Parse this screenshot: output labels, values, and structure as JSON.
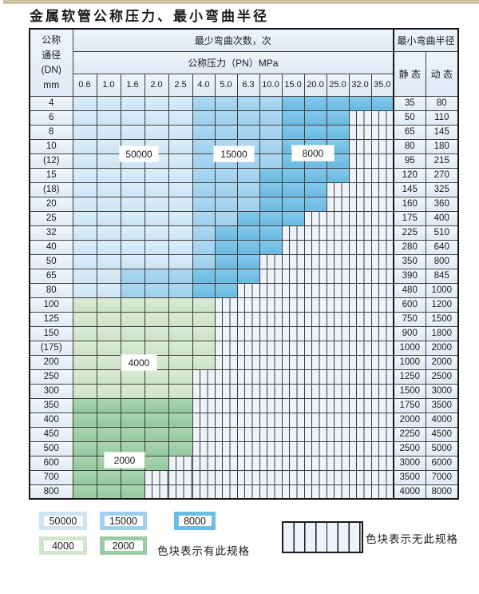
{
  "title": "金属软管公称压力、最小弯曲半径",
  "table": {
    "header": {
      "dn_lines": [
        "公称",
        "通径",
        "(DN)",
        "mm"
      ],
      "bend_cycles": "最少弯曲次数，次",
      "pressure": "公称压力（PN）MPa",
      "radius": "最小弯曲半径",
      "static": "静 态",
      "dynamic": "动 态",
      "pressure_cols": [
        "0.6",
        "1.0",
        "1.6",
        "2.0",
        "2.5",
        "4.0",
        "5.0",
        "6.3",
        "10.0",
        "15.0",
        "20.0",
        "25.0",
        "32.0",
        "35.0"
      ]
    },
    "cycle_codes": {
      "L5": "50000",
      "L15": "15000",
      "L8": "8000",
      "G4": "4000",
      "G2": "2000",
      "N": "no-spec"
    },
    "rows": [
      {
        "dn": "4",
        "static": "35",
        "dynamic": "80",
        "cells": [
          "L5",
          "L5",
          "L5",
          "L5",
          "L5",
          "L15",
          "L15",
          "L15",
          "L15",
          "L8",
          "L8",
          "L8",
          "L8",
          "L8"
        ]
      },
      {
        "dn": "6",
        "static": "50",
        "dynamic": "110",
        "cells": [
          "L5",
          "L5",
          "L5",
          "L5",
          "L5",
          "L15",
          "L15",
          "L15",
          "L15",
          "L8",
          "L8",
          "L8",
          "N",
          "N"
        ]
      },
      {
        "dn": "8",
        "static": "65",
        "dynamic": "145",
        "cells": [
          "L5",
          "L5",
          "L5",
          "L5",
          "L5",
          "L15",
          "L15",
          "L15",
          "L15",
          "L8",
          "L8",
          "L8",
          "N",
          "N"
        ]
      },
      {
        "dn": "10",
        "static": "80",
        "dynamic": "180",
        "cells": [
          "L5",
          "L5",
          "L5",
          "L5",
          "L5",
          "L15",
          "L15",
          "L15",
          "L15",
          "L8",
          "L8",
          "L8",
          "N",
          "N"
        ]
      },
      {
        "dn": "(12)",
        "static": "95",
        "dynamic": "215",
        "cells": [
          "L5",
          "L5",
          "L5",
          "L5",
          "L5",
          "L15",
          "L15",
          "L15",
          "L15",
          "L8",
          "L8",
          "L8",
          "N",
          "N"
        ]
      },
      {
        "dn": "15",
        "static": "120",
        "dynamic": "270",
        "cells": [
          "L5",
          "L5",
          "L5",
          "L5",
          "L5",
          "L15",
          "L15",
          "L15",
          "L8",
          "L8",
          "L8",
          "L8",
          "N",
          "N"
        ]
      },
      {
        "dn": "(18)",
        "static": "145",
        "dynamic": "325",
        "cells": [
          "L5",
          "L5",
          "L5",
          "L5",
          "L5",
          "L15",
          "L15",
          "L15",
          "L8",
          "L8",
          "L8",
          "N",
          "N",
          "N"
        ]
      },
      {
        "dn": "20",
        "static": "160",
        "dynamic": "360",
        "cells": [
          "L5",
          "L5",
          "L5",
          "L5",
          "L5",
          "L15",
          "L15",
          "L15",
          "L8",
          "L8",
          "L8",
          "N",
          "N",
          "N"
        ]
      },
      {
        "dn": "25",
        "static": "175",
        "dynamic": "400",
        "cells": [
          "L5",
          "L5",
          "L5",
          "L5",
          "L5",
          "L15",
          "L15",
          "L8",
          "L8",
          "L8",
          "N",
          "N",
          "N",
          "N"
        ]
      },
      {
        "dn": "32",
        "static": "225",
        "dynamic": "510",
        "cells": [
          "L5",
          "L5",
          "L5",
          "L5",
          "L5",
          "L15",
          "L8",
          "L8",
          "L8",
          "N",
          "N",
          "N",
          "N",
          "N"
        ]
      },
      {
        "dn": "40",
        "static": "280",
        "dynamic": "640",
        "cells": [
          "L5",
          "L5",
          "L5",
          "L5",
          "L5",
          "L15",
          "L8",
          "L8",
          "L8",
          "N",
          "N",
          "N",
          "N",
          "N"
        ]
      },
      {
        "dn": "50",
        "static": "350",
        "dynamic": "800",
        "cells": [
          "L5",
          "L5",
          "L5",
          "L5",
          "L5",
          "L15",
          "L8",
          "L8",
          "N",
          "N",
          "N",
          "N",
          "N",
          "N"
        ]
      },
      {
        "dn": "65",
        "static": "390",
        "dynamic": "845",
        "cells": [
          "L5",
          "L5",
          "L15",
          "L15",
          "L15",
          "L8",
          "L8",
          "L8",
          "N",
          "N",
          "N",
          "N",
          "N",
          "N"
        ]
      },
      {
        "dn": "80",
        "static": "480",
        "dynamic": "1000",
        "cells": [
          "L5",
          "L5",
          "L15",
          "L15",
          "L15",
          "L8",
          "L8",
          "N",
          "N",
          "N",
          "N",
          "N",
          "N",
          "N"
        ]
      },
      {
        "dn": "100",
        "static": "600",
        "dynamic": "1200",
        "cells": [
          "G4",
          "G4",
          "G4",
          "G4",
          "G4",
          "G4",
          "N",
          "N",
          "N",
          "N",
          "N",
          "N",
          "N",
          "N"
        ]
      },
      {
        "dn": "125",
        "static": "750",
        "dynamic": "1500",
        "cells": [
          "G4",
          "G4",
          "G4",
          "G4",
          "G4",
          "G4",
          "N",
          "N",
          "N",
          "N",
          "N",
          "N",
          "N",
          "N"
        ]
      },
      {
        "dn": "150",
        "static": "900",
        "dynamic": "1800",
        "cells": [
          "G4",
          "G4",
          "G4",
          "G4",
          "G4",
          "G4",
          "N",
          "N",
          "N",
          "N",
          "N",
          "N",
          "N",
          "N"
        ]
      },
      {
        "dn": "(175)",
        "static": "1000",
        "dynamic": "2000",
        "cells": [
          "G4",
          "G4",
          "G4",
          "G4",
          "G4",
          "G4",
          "N",
          "N",
          "N",
          "N",
          "N",
          "N",
          "N",
          "N"
        ]
      },
      {
        "dn": "200",
        "static": "1000",
        "dynamic": "2000",
        "cells": [
          "G4",
          "G4",
          "G4",
          "G4",
          "G4",
          "G4",
          "N",
          "N",
          "N",
          "N",
          "N",
          "N",
          "N",
          "N"
        ]
      },
      {
        "dn": "250",
        "static": "1250",
        "dynamic": "2500",
        "cells": [
          "G4",
          "G4",
          "G4",
          "G4",
          "G4",
          "N",
          "N",
          "N",
          "N",
          "N",
          "N",
          "N",
          "N",
          "N"
        ]
      },
      {
        "dn": "300",
        "static": "1500",
        "dynamic": "3000",
        "cells": [
          "G4",
          "G4",
          "G4",
          "G4",
          "G4",
          "N",
          "N",
          "N",
          "N",
          "N",
          "N",
          "N",
          "N",
          "N"
        ]
      },
      {
        "dn": "350",
        "static": "1750",
        "dynamic": "3500",
        "cells": [
          "G2",
          "G2",
          "G2",
          "G2",
          "G2",
          "N",
          "N",
          "N",
          "N",
          "N",
          "N",
          "N",
          "N",
          "N"
        ]
      },
      {
        "dn": "400",
        "static": "2000",
        "dynamic": "4000",
        "cells": [
          "G2",
          "G2",
          "G2",
          "G2",
          "G2",
          "N",
          "N",
          "N",
          "N",
          "N",
          "N",
          "N",
          "N",
          "N"
        ]
      },
      {
        "dn": "450",
        "static": "2250",
        "dynamic": "4500",
        "cells": [
          "G2",
          "G2",
          "G2",
          "G2",
          "G2",
          "N",
          "N",
          "N",
          "N",
          "N",
          "N",
          "N",
          "N",
          "N"
        ]
      },
      {
        "dn": "500",
        "static": "2500",
        "dynamic": "5000",
        "cells": [
          "G2",
          "G2",
          "G2",
          "G2",
          "G2",
          "N",
          "N",
          "N",
          "N",
          "N",
          "N",
          "N",
          "N",
          "N"
        ]
      },
      {
        "dn": "600",
        "static": "3000",
        "dynamic": "6000",
        "cells": [
          "G2",
          "G2",
          "G2",
          "G2",
          "N",
          "N",
          "N",
          "N",
          "N",
          "N",
          "N",
          "N",
          "N",
          "N"
        ]
      },
      {
        "dn": "700",
        "static": "3500",
        "dynamic": "7000",
        "cells": [
          "G2",
          "G2",
          "G2",
          "N",
          "N",
          "N",
          "N",
          "N",
          "N",
          "N",
          "N",
          "N",
          "N",
          "N"
        ]
      },
      {
        "dn": "800",
        "static": "4000",
        "dynamic": "8000",
        "cells": [
          "G2",
          "G2",
          "G2",
          "N",
          "N",
          "N",
          "N",
          "N",
          "N",
          "N",
          "N",
          "N",
          "N",
          "N"
        ]
      }
    ]
  },
  "region_labels": [
    {
      "text": "50000",
      "anchor": "rows 10-(12), cols 1.6-2.0"
    },
    {
      "text": "15000",
      "anchor": "rows 10-(12), cols 5.0-6.3"
    },
    {
      "text": "8000",
      "anchor": "rows 10-(12), cols 15.0-25.0"
    },
    {
      "text": "4000",
      "anchor": "row 200, cols 1.6-2.0"
    },
    {
      "text": "2000",
      "anchor": "rows 500-600, cols 1.0-2.0"
    }
  ],
  "legend": {
    "chips": [
      {
        "code": "L5",
        "label": "50000",
        "color": "#cde4f5"
      },
      {
        "code": "L15",
        "label": "15000",
        "color": "#9dd0ee"
      },
      {
        "code": "L8",
        "label": "8000",
        "color": "#6cbde6"
      },
      {
        "code": "G4",
        "label": "4000",
        "color": "#d2e5cd"
      },
      {
        "code": "G2",
        "label": "2000",
        "color": "#9acba5"
      }
    ],
    "has_spec_note": "色块表示有此规格",
    "no_spec_note": "色块表示无此规格"
  }
}
